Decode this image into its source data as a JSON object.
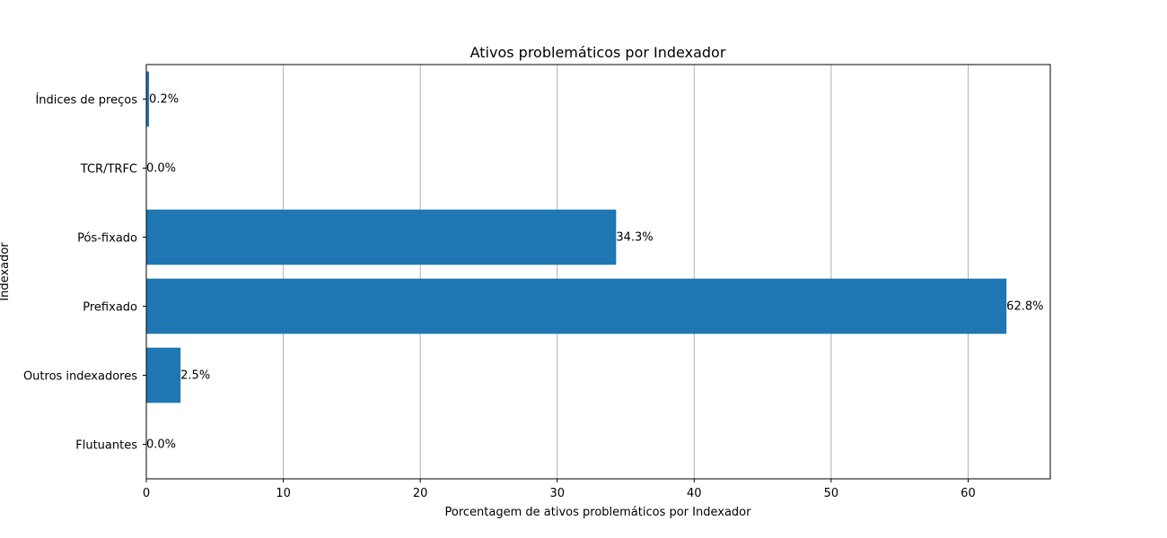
{
  "chart_data": {
    "type": "bar",
    "orientation": "horizontal",
    "title": "Ativos problemáticos por Indexador",
    "xlabel": "Porcentagem de ativos problemáticos por Indexador",
    "ylabel": "Indexador",
    "categories": [
      "Índices de preços",
      "TCR/TRFC",
      "Pós-fixado",
      "Prefixado",
      "Outros indexadores",
      "Flutuantes"
    ],
    "values": [
      0.2,
      0.0,
      34.3,
      62.8,
      2.5,
      0.0
    ],
    "data_labels": [
      "0.2%",
      "0.0%",
      "34.3%",
      "62.8%",
      "2.5%",
      "0.0%"
    ],
    "xlim": [
      0,
      66
    ],
    "xticks": [
      0,
      10,
      20,
      30,
      40,
      50,
      60
    ],
    "grid": "x",
    "bar_color": "#1f77b4"
  }
}
